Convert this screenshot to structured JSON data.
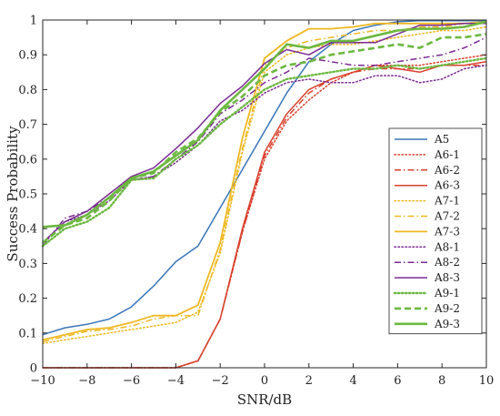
{
  "chart_data": {
    "type": "line",
    "xlabel": "SNR/dB",
    "ylabel": "Success Probability",
    "xlim": [
      -10,
      10
    ],
    "ylim": [
      0,
      1
    ],
    "xticks": [
      -10,
      -8,
      -6,
      -4,
      -2,
      0,
      2,
      4,
      6,
      8,
      10
    ],
    "yticks": [
      0,
      0.1,
      0.2,
      0.3,
      0.4,
      0.5,
      0.6,
      0.7,
      0.8,
      0.9,
      1
    ],
    "xtick_labels": [
      "−10",
      "−8",
      "−6",
      "−4",
      "−2",
      "0",
      "2",
      "4",
      "6",
      "8",
      "10"
    ],
    "ytick_labels": [
      "0",
      "0.1",
      "0.2",
      "0.3",
      "0.4",
      "0.5",
      "0.6",
      "0.7",
      "0.8",
      "0.9",
      "1"
    ],
    "grid": false,
    "legend_position": "right",
    "x": [
      -10,
      -9,
      -8,
      -7,
      -6,
      -5,
      -4,
      -3,
      -2,
      -1,
      0,
      1,
      2,
      3,
      4,
      5,
      6,
      7,
      8,
      9,
      10
    ],
    "series": [
      {
        "name": "A5",
        "color": "#3a75b8",
        "style": "solid",
        "width": 1.5,
        "values": [
          0.095,
          0.115,
          0.125,
          0.14,
          0.175,
          0.235,
          0.305,
          0.35,
          0.46,
          0.57,
          0.68,
          0.79,
          0.88,
          0.93,
          0.97,
          0.985,
          0.995,
          0.998,
          0.998,
          0.998,
          0.998
        ]
      },
      {
        "name": "A6-1",
        "color": "#d9412d",
        "style": "dotted",
        "width": 1.5,
        "values": [
          0.0,
          0.0,
          0.0,
          0.0,
          0.0,
          0.0,
          0.0,
          0.02,
          0.14,
          0.39,
          0.6,
          0.71,
          0.77,
          0.82,
          0.85,
          0.87,
          0.87,
          0.87,
          0.88,
          0.89,
          0.9
        ]
      },
      {
        "name": "A6-2",
        "color": "#d9412d",
        "style": "dashdot",
        "width": 1.5,
        "values": [
          0.0,
          0.0,
          0.0,
          0.0,
          0.0,
          0.0,
          0.0,
          0.02,
          0.14,
          0.39,
          0.61,
          0.72,
          0.79,
          0.83,
          0.85,
          0.86,
          0.86,
          0.86,
          0.87,
          0.87,
          0.87
        ]
      },
      {
        "name": "A6-3",
        "color": "#d9412d",
        "style": "solid",
        "width": 1.5,
        "values": [
          0.0,
          0.0,
          0.0,
          0.0,
          0.0,
          0.0,
          0.0,
          0.02,
          0.14,
          0.4,
          0.62,
          0.73,
          0.8,
          0.83,
          0.85,
          0.87,
          0.86,
          0.85,
          0.87,
          0.87,
          0.88
        ]
      },
      {
        "name": "A7-1",
        "color": "#efb821",
        "style": "dotted",
        "width": 1.5,
        "values": [
          0.07,
          0.08,
          0.09,
          0.1,
          0.11,
          0.12,
          0.13,
          0.16,
          0.33,
          0.62,
          0.85,
          0.9,
          0.92,
          0.93,
          0.93,
          0.94,
          0.95,
          0.96,
          0.97,
          0.97,
          0.98
        ]
      },
      {
        "name": "A7-2",
        "color": "#efb821",
        "style": "dashdot",
        "width": 1.5,
        "values": [
          0.075,
          0.09,
          0.105,
          0.11,
          0.12,
          0.14,
          0.15,
          0.15,
          0.34,
          0.63,
          0.87,
          0.92,
          0.94,
          0.95,
          0.96,
          0.97,
          0.97,
          0.98,
          0.98,
          0.99,
          0.99
        ]
      },
      {
        "name": "A7-3",
        "color": "#efb821",
        "style": "solid",
        "width": 1.8,
        "values": [
          0.08,
          0.095,
          0.11,
          0.115,
          0.13,
          0.15,
          0.15,
          0.18,
          0.36,
          0.66,
          0.89,
          0.94,
          0.975,
          0.975,
          0.98,
          0.99,
          0.99,
          0.99,
          0.99,
          0.99,
          0.995
        ]
      },
      {
        "name": "A8-1",
        "color": "#7a2b93",
        "style": "dotted",
        "width": 1.5,
        "values": [
          0.36,
          0.42,
          0.44,
          0.48,
          0.54,
          0.55,
          0.59,
          0.64,
          0.71,
          0.74,
          0.79,
          0.82,
          0.83,
          0.82,
          0.82,
          0.84,
          0.84,
          0.82,
          0.83,
          0.86,
          0.87
        ]
      },
      {
        "name": "A8-2",
        "color": "#7a2b93",
        "style": "dashdot",
        "width": 1.5,
        "values": [
          0.35,
          0.43,
          0.45,
          0.49,
          0.54,
          0.55,
          0.6,
          0.65,
          0.73,
          0.77,
          0.82,
          0.85,
          0.89,
          0.88,
          0.87,
          0.87,
          0.88,
          0.89,
          0.9,
          0.92,
          0.95
        ]
      },
      {
        "name": "A8-3",
        "color": "#7a2b93",
        "style": "solid",
        "width": 1.5,
        "values": [
          0.36,
          0.42,
          0.45,
          0.5,
          0.55,
          0.575,
          0.63,
          0.69,
          0.76,
          0.81,
          0.875,
          0.915,
          0.9,
          0.935,
          0.935,
          0.935,
          0.96,
          0.985,
          0.985,
          0.99,
          0.99
        ]
      },
      {
        "name": "A9-1",
        "color": "#6cb840",
        "style": "dotted",
        "width": 2.4,
        "values": [
          0.35,
          0.4,
          0.42,
          0.46,
          0.54,
          0.545,
          0.6,
          0.64,
          0.7,
          0.75,
          0.8,
          0.83,
          0.84,
          0.85,
          0.86,
          0.86,
          0.87,
          0.86,
          0.87,
          0.88,
          0.89
        ]
      },
      {
        "name": "A9-2",
        "color": "#6cb840",
        "style": "dashed",
        "width": 2.6,
        "values": [
          0.36,
          0.41,
          0.43,
          0.48,
          0.545,
          0.56,
          0.62,
          0.66,
          0.735,
          0.78,
          0.84,
          0.87,
          0.88,
          0.9,
          0.91,
          0.92,
          0.93,
          0.92,
          0.95,
          0.95,
          0.96
        ]
      },
      {
        "name": "A9-3",
        "color": "#6cb840",
        "style": "solid",
        "width": 2.6,
        "values": [
          0.405,
          0.41,
          0.44,
          0.49,
          0.545,
          0.565,
          0.61,
          0.655,
          0.74,
          0.8,
          0.86,
          0.93,
          0.92,
          0.94,
          0.94,
          0.955,
          0.97,
          0.975,
          0.975,
          0.98,
          0.995
        ]
      }
    ]
  }
}
